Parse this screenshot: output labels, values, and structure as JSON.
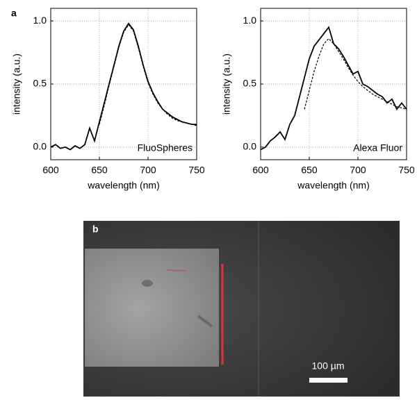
{
  "chart_data": [
    {
      "type": "line",
      "panel_label": "a",
      "xlabel": "wavelength (nm)",
      "ylabel": "intensity (a.u.)",
      "annotation": "FluoSpheres",
      "x": [
        600,
        605,
        610,
        615,
        620,
        625,
        630,
        635,
        640,
        645,
        650,
        655,
        660,
        665,
        670,
        675,
        680,
        685,
        690,
        695,
        700,
        705,
        710,
        715,
        720,
        725,
        730,
        735,
        740,
        745,
        750
      ],
      "series": [
        {
          "color": "#000000",
          "style": "solid",
          "values": [
            0.0,
            0.02,
            -0.01,
            0.0,
            -0.02,
            0.01,
            -0.01,
            0.02,
            0.15,
            0.05,
            0.2,
            0.35,
            0.5,
            0.65,
            0.8,
            0.92,
            0.98,
            0.93,
            0.8,
            0.65,
            0.52,
            0.43,
            0.36,
            0.3,
            0.27,
            0.24,
            0.22,
            0.2,
            0.19,
            0.18,
            0.18
          ]
        },
        {
          "color": "#000000",
          "style": "dashed",
          "values": [
            null,
            null,
            null,
            null,
            null,
            null,
            null,
            null,
            null,
            null,
            0.18,
            0.33,
            0.49,
            0.64,
            0.79,
            0.91,
            0.97,
            0.92,
            0.79,
            0.64,
            0.51,
            0.42,
            0.35,
            0.3,
            0.26,
            0.23,
            0.21,
            0.2,
            0.19,
            0.18,
            0.17
          ]
        }
      ],
      "xlim": [
        600,
        750
      ],
      "xticks": [
        600,
        650,
        700,
        750
      ],
      "ylim": [
        -0.1,
        1.1
      ],
      "yticks": [
        {
          "value": 0,
          "label": "0.0"
        },
        {
          "value": 0.5,
          "label": "0.5"
        },
        {
          "value": 1,
          "label": "1.0"
        }
      ],
      "grid": true
    },
    {
      "type": "line",
      "xlabel": "wavelength (nm)",
      "ylabel": "intensity (a.u.)",
      "annotation": "Alexa Fluor",
      "x": [
        600,
        605,
        610,
        615,
        620,
        625,
        630,
        635,
        640,
        645,
        650,
        655,
        660,
        665,
        670,
        675,
        680,
        685,
        690,
        695,
        700,
        705,
        710,
        715,
        720,
        725,
        730,
        735,
        740,
        745,
        750
      ],
      "series": [
        {
          "color": "#000000",
          "style": "solid",
          "values": [
            -0.02,
            0.0,
            0.05,
            0.08,
            0.12,
            0.06,
            0.18,
            0.25,
            0.4,
            0.55,
            0.7,
            0.8,
            0.85,
            0.9,
            0.95,
            0.82,
            0.78,
            0.72,
            0.65,
            0.58,
            0.6,
            0.5,
            0.48,
            0.45,
            0.42,
            0.4,
            0.35,
            0.38,
            0.3,
            0.35,
            0.3
          ]
        },
        {
          "color": "#000000",
          "style": "dashed",
          "values": [
            null,
            null,
            null,
            null,
            null,
            null,
            null,
            null,
            null,
            0.3,
            0.45,
            0.6,
            0.72,
            0.82,
            0.86,
            0.82,
            0.76,
            0.7,
            0.63,
            0.57,
            0.52,
            0.48,
            0.45,
            0.42,
            0.4,
            0.38,
            0.36,
            0.34,
            0.32,
            0.31,
            0.3
          ]
        }
      ],
      "xlim": [
        600,
        750
      ],
      "xticks": [
        600,
        650,
        700,
        750
      ],
      "ylim": [
        -0.1,
        1.1
      ],
      "yticks": [
        {
          "value": 0,
          "label": "0.0"
        },
        {
          "value": 0.5,
          "label": "0.5"
        },
        {
          "value": 1,
          "label": "1.0"
        }
      ],
      "grid": true
    }
  ],
  "image": {
    "panel_label": "b",
    "scale_bar": "100 µm"
  }
}
